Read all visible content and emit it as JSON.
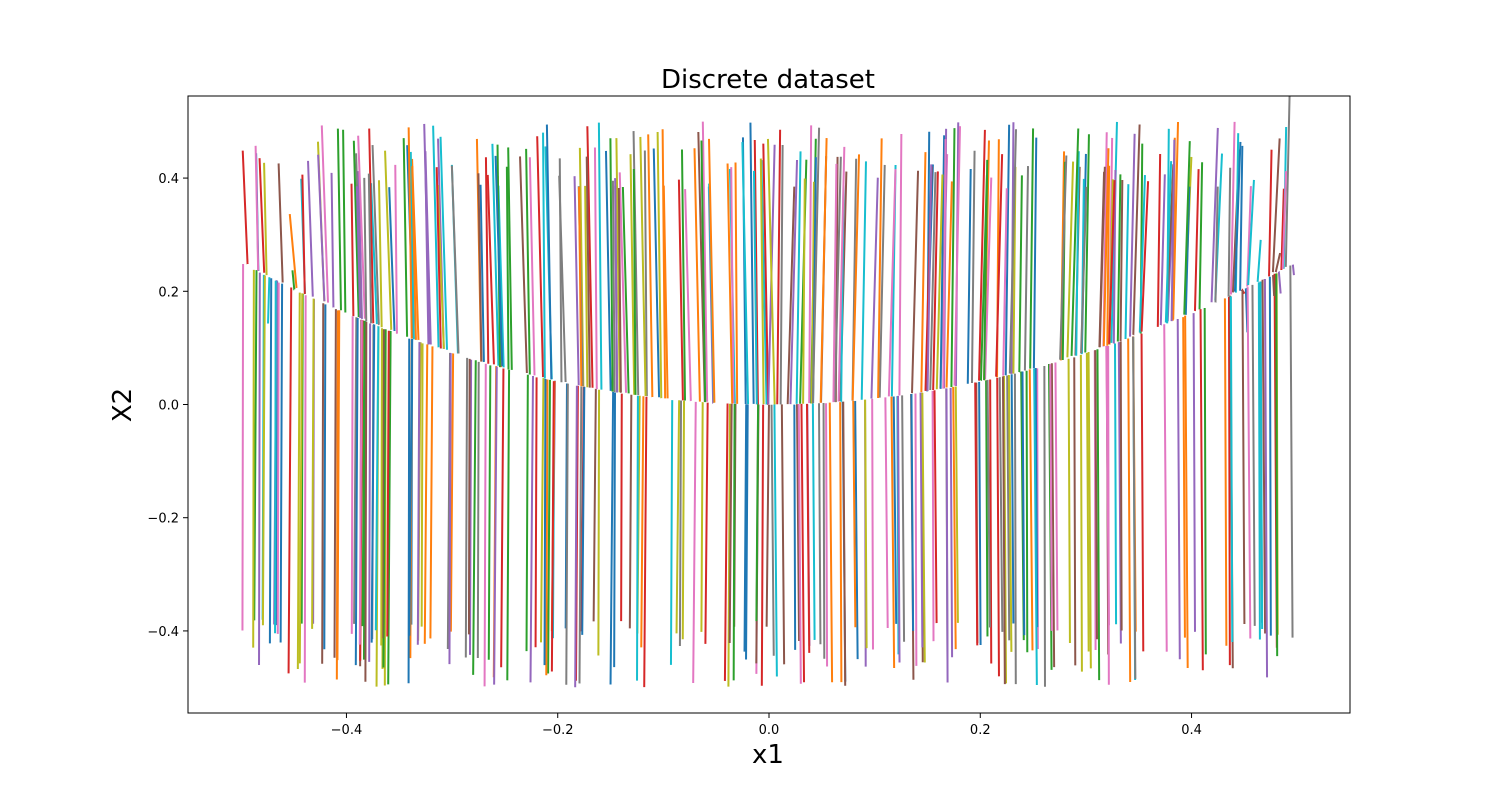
{
  "chart_data": {
    "type": "line",
    "title": "Discrete dataset",
    "xlabel": "x1",
    "ylabel": "X2",
    "xlim": [
      -0.55,
      0.55
    ],
    "ylim": [
      -0.545,
      0.545
    ],
    "xticks": [
      -0.4,
      -0.2,
      0.0,
      0.2,
      0.4
    ],
    "xtick_labels": [
      "−0.4",
      "−0.2",
      "0.0",
      "0.2",
      "0.4"
    ],
    "yticks": [
      -0.4,
      -0.2,
      0.0,
      0.2,
      0.4
    ],
    "ytick_labels": [
      "−0.4",
      "−0.2",
      "0.0",
      "0.2",
      "0.4"
    ],
    "grid": false,
    "legend": false,
    "colors": [
      "#1f77b4",
      "#ff7f0e",
      "#2ca02c",
      "#d62728",
      "#9467bd",
      "#8c564b",
      "#e377c2",
      "#7f7f7f",
      "#bcbd22",
      "#17becf"
    ],
    "description_of_series": "Hundreds of trajectories x1(t), X2(t) starting from initial points spread over x1 in [-0.5, 0.5] and X2 in [-0.5, 0.5]; each trajectory flows toward the curve X2 = x1^2 (rising from 0 at x1 = 0 to about 0.2 at |x1| = 0.5), with x1 nearly constant along each path.",
    "attractor_curve": {
      "x": [
        -0.5,
        -0.4,
        -0.3,
        -0.2,
        -0.1,
        0.0,
        0.1,
        0.2,
        0.3,
        0.4,
        0.5
      ],
      "y": [
        0.2,
        0.16,
        0.09,
        0.04,
        0.01,
        0.0,
        0.01,
        0.04,
        0.09,
        0.16,
        0.2
      ]
    },
    "series_sample": [
      {
        "x": [
          -0.5,
          -0.5
        ],
        "y": [
          -0.49,
          0.21
        ]
      },
      {
        "x": [
          -0.49,
          -0.48
        ],
        "y": [
          0.5,
          0.2
        ]
      },
      {
        "x": [
          -0.43,
          -0.43
        ],
        "y": [
          -0.49,
          0.15
        ]
      },
      {
        "x": [
          -0.3,
          -0.3
        ],
        "y": [
          0.45,
          0.09
        ]
      },
      {
        "x": [
          -0.2,
          -0.2
        ],
        "y": [
          -0.48,
          0.04
        ]
      },
      {
        "x": [
          -0.1,
          -0.1
        ],
        "y": [
          0.5,
          0.01
        ]
      },
      {
        "x": [
          0.0,
          0.0
        ],
        "y": [
          -0.47,
          0.0
        ]
      },
      {
        "x": [
          0.1,
          0.1
        ],
        "y": [
          0.5,
          0.01
        ]
      },
      {
        "x": [
          0.2,
          0.2
        ],
        "y": [
          -0.49,
          0.04
        ]
      },
      {
        "x": [
          0.3,
          0.3
        ],
        "y": [
          -0.49,
          0.09
        ]
      },
      {
        "x": [
          0.41,
          0.41
        ],
        "y": [
          0.5,
          0.17
        ]
      },
      {
        "x": [
          0.5,
          0.5
        ],
        "y": [
          0.47,
          0.2
        ]
      },
      {
        "x": [
          0.5,
          0.5
        ],
        "y": [
          -0.44,
          0.2
        ]
      }
    ],
    "n_series_drawn": 480
  }
}
